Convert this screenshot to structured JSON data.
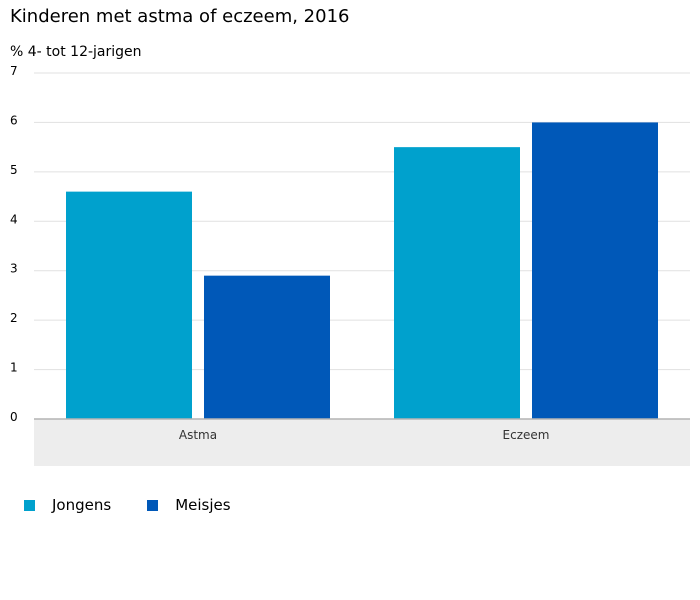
{
  "chart_data": {
    "type": "bar",
    "title": "Kinderen met astma of eczeem, 2016",
    "subtitle": "% 4- tot 12-jarigen",
    "categories": [
      "Astma",
      "Eczeem"
    ],
    "series": [
      {
        "name": "Jongens",
        "values": [
          4.6,
          5.5
        ],
        "color": "#00a1cd"
      },
      {
        "name": "Meisjes",
        "values": [
          2.9,
          6.0
        ],
        "color": "#0058b8"
      }
    ],
    "ylim": [
      0,
      7
    ],
    "yticks": [
      "0",
      "1",
      "2",
      "3",
      "4",
      "5",
      "6",
      "7"
    ],
    "grid": true,
    "legend_position": "bottom-left"
  }
}
